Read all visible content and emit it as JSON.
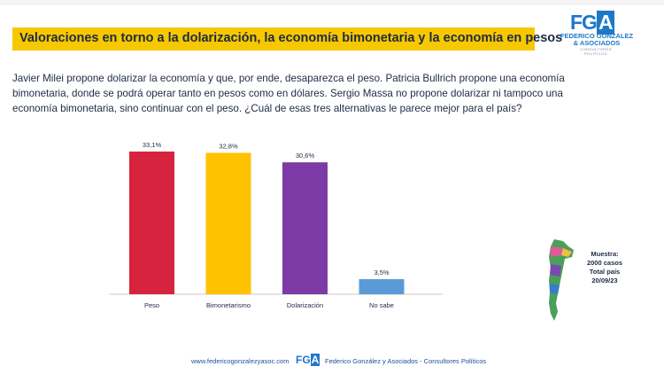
{
  "header": {
    "title": "Valoraciones en torno a la dolarización, la economía bimonetaria y la economía en pesos"
  },
  "logo": {
    "mark": "FG",
    "mark_a": "A",
    "name_line1": "FEDERICO GONZALEZ",
    "name_line2": "& ASOCIADOS",
    "tagline": "CONSULTORES POLÍTICOS"
  },
  "question": "Javier Milei propone dolarizar la economía y que, por ende, desaparezca el peso. Patricia Bullrich propone una economía bimonetaria, donde se podrá operar tanto en pesos como en dólares. Sergio Massa no propone dolarizar ni tampoco una economía bimonetaria, sino continuar con el peso. ¿Cuál de esas tres alternativas le parece mejor para el país?",
  "sample": {
    "line1": "Muestra:",
    "line2": "2000 casos",
    "line3": "Total país",
    "line4": "20/09/23"
  },
  "footer": {
    "url": "www.federicogonzalezyasoc.com",
    "logo_mark": "FG",
    "logo_a": "A",
    "name": "Federico González y Asociados - Consultores Políticos"
  },
  "colors": {
    "title_bar": "#f6c800",
    "peso": "#d7243e",
    "bimonetarismo": "#ffc200",
    "dolarizacion": "#7b3aa5",
    "no_sabe": "#5b9bd5",
    "brand_blue": "#1e78c8"
  },
  "chart_data": {
    "type": "bar",
    "categories": [
      "Peso",
      "Bimonetarismo",
      "Dolarización",
      "No sabe"
    ],
    "values": [
      33.1,
      32.8,
      30.6,
      3.5
    ],
    "value_labels": [
      "33,1%",
      "32,8%",
      "30,6%",
      "3,5%"
    ],
    "colors": [
      "#d7243e",
      "#ffc200",
      "#7b3aa5",
      "#5b9bd5"
    ],
    "ylim": [
      0,
      33.1
    ],
    "grid": false,
    "legend": "none"
  }
}
